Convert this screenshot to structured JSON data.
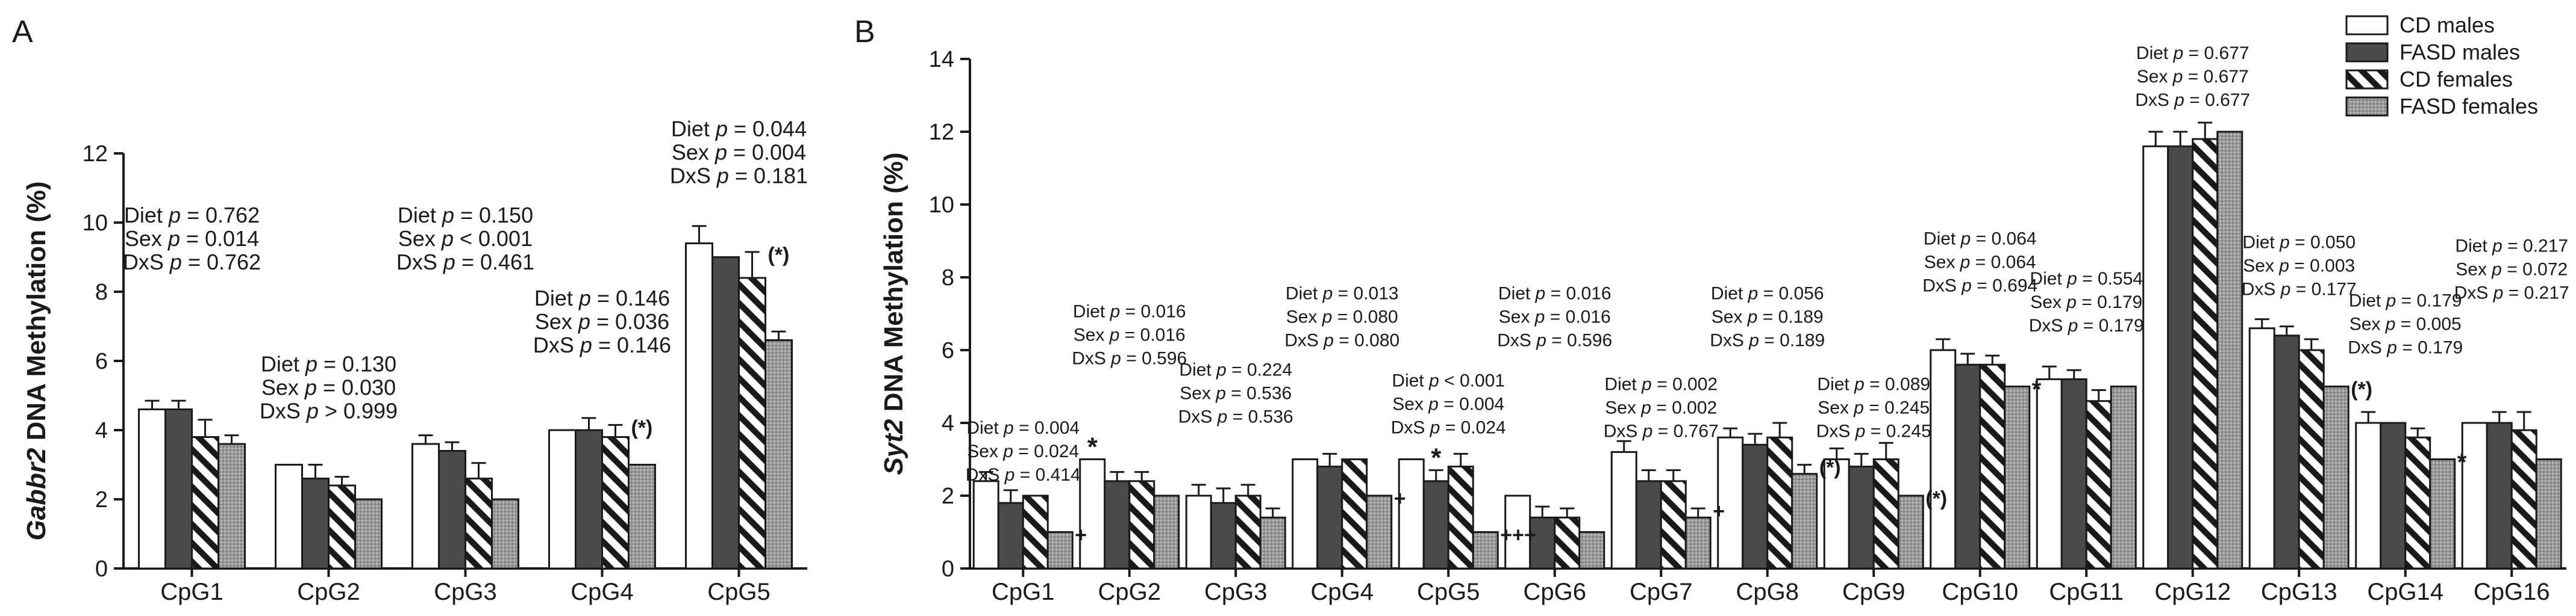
{
  "panel_labels": {
    "a": "A",
    "b": "B"
  },
  "legend": [
    {
      "key": "cd_males",
      "label": "CD males",
      "fill": "#ffffff"
    },
    {
      "key": "fasd_males",
      "label": "FASD males",
      "fill": "#4a4a4a"
    },
    {
      "key": "cd_females",
      "label": "CD females",
      "fill": "hatch"
    },
    {
      "key": "fasd_females",
      "label": "FASD females",
      "fill": "dots"
    }
  ],
  "chart_data": [
    {
      "panel": "A",
      "type": "bar",
      "ylabel_gene": "Gabbr2",
      "ylabel_rest": " DNA Methylation (%)",
      "ylim": [
        0,
        12
      ],
      "yticks": [
        0,
        2,
        4,
        6,
        8,
        10,
        12
      ],
      "categories": [
        "CpG1",
        "CpG2",
        "CpG3",
        "CpG4",
        "CpG5"
      ],
      "series": [
        {
          "name": "CD males",
          "values": [
            4.6,
            3.0,
            3.6,
            4.0,
            9.4
          ],
          "errors": [
            0.25,
            0.0,
            0.25,
            0.0,
            0.5
          ]
        },
        {
          "name": "FASD males",
          "values": [
            4.6,
            2.6,
            3.4,
            4.0,
            9.0
          ],
          "errors": [
            0.25,
            0.4,
            0.25,
            0.35,
            0.0
          ]
        },
        {
          "name": "CD females",
          "values": [
            3.8,
            2.4,
            2.6,
            3.8,
            8.4
          ],
          "errors": [
            0.5,
            0.25,
            0.45,
            0.35,
            0.75
          ]
        },
        {
          "name": "FASD females",
          "values": [
            3.6,
            2.0,
            2.0,
            3.0,
            6.6
          ],
          "errors": [
            0.25,
            0.0,
            0.0,
            0.0,
            0.25
          ]
        }
      ],
      "marks": [
        {
          "cat": 4,
          "series": 2,
          "text": "(*)"
        },
        {
          "cat": 3,
          "series": 2,
          "text": "(*)"
        }
      ],
      "stats": [
        {
          "cat": 0,
          "value": 10.0,
          "lines": [
            {
              "l": "Diet ",
              "p": "p",
              "r": " = 0.762"
            },
            {
              "l": "Sex ",
              "p": "p",
              "r": " = 0.014"
            },
            {
              "l": "DxS ",
              "p": "p",
              "r": " = 0.762"
            }
          ]
        },
        {
          "cat": 1,
          "value": 5.7,
          "lines": [
            {
              "l": "Diet ",
              "p": "p",
              "r": " = 0.130"
            },
            {
              "l": "Sex ",
              "p": "p",
              "r": " = 0.030"
            },
            {
              "l": "DxS ",
              "p": "p",
              "r": " > 0.999"
            }
          ]
        },
        {
          "cat": 2,
          "value": 10.0,
          "lines": [
            {
              "l": "Diet ",
              "p": "p",
              "r": " = 0.150"
            },
            {
              "l": "Sex ",
              "p": "p",
              "r": " < 0.001"
            },
            {
              "l": "DxS ",
              "p": "p",
              "r": " = 0.461"
            }
          ]
        },
        {
          "cat": 3,
          "value": 7.6,
          "lines": [
            {
              "l": "Diet ",
              "p": "p",
              "r": " = 0.146"
            },
            {
              "l": "Sex ",
              "p": "p",
              "r": " = 0.036"
            },
            {
              "l": "DxS ",
              "p": "p",
              "r": " = 0.146"
            }
          ]
        },
        {
          "cat": 4,
          "value": 12.5,
          "lines": [
            {
              "l": "Diet ",
              "p": "p",
              "r": " = 0.044"
            },
            {
              "l": "Sex ",
              "p": "p",
              "r": " = 0.004"
            },
            {
              "l": "DxS ",
              "p": "p",
              "r": " = 0.181"
            }
          ]
        }
      ]
    },
    {
      "panel": "B",
      "type": "bar",
      "ylabel_gene": "Syt2",
      "ylabel_rest": " DNA Methylation (%)",
      "ylim": [
        0,
        14
      ],
      "yticks": [
        0,
        2,
        4,
        6,
        8,
        10,
        12,
        14
      ],
      "categories": [
        "CpG1",
        "CpG2",
        "CpG3",
        "CpG4",
        "CpG5",
        "CpG6",
        "CpG7",
        "CpG8",
        "CpG9",
        "CpG10",
        "CpG11",
        "CpG12",
        "CpG13",
        "CpG14",
        "CpG16"
      ],
      "series": [
        {
          "name": "CD males",
          "values": [
            2.4,
            3.0,
            2.0,
            3.0,
            3.0,
            2.0,
            3.2,
            3.6,
            3.0,
            6.0,
            5.2,
            11.6,
            6.6,
            4.0,
            4.0
          ],
          "errors": [
            0.25,
            0.0,
            0.3,
            0.0,
            0.0,
            0.0,
            0.3,
            0.25,
            0.3,
            0.3,
            0.35,
            0.4,
            0.25,
            0.3,
            0.0
          ]
        },
        {
          "name": "FASD males",
          "values": [
            1.8,
            2.4,
            1.8,
            2.8,
            2.4,
            1.4,
            2.4,
            3.4,
            2.8,
            5.6,
            5.2,
            11.6,
            6.4,
            4.0,
            4.0
          ],
          "errors": [
            0.35,
            0.25,
            0.4,
            0.35,
            0.3,
            0.3,
            0.3,
            0.3,
            0.35,
            0.3,
            0.25,
            0.4,
            0.25,
            0.0,
            0.3
          ]
        },
        {
          "name": "CD females",
          "values": [
            2.0,
            2.4,
            2.0,
            3.0,
            2.8,
            1.4,
            2.4,
            3.6,
            3.0,
            5.6,
            4.6,
            11.8,
            6.0,
            3.6,
            3.8
          ],
          "errors": [
            0.0,
            0.25,
            0.3,
            0.0,
            0.35,
            0.25,
            0.3,
            0.4,
            0.45,
            0.25,
            0.3,
            0.45,
            0.3,
            0.25,
            0.5
          ]
        },
        {
          "name": "FASD females",
          "values": [
            1.0,
            2.0,
            1.4,
            2.0,
            1.0,
            1.0,
            1.4,
            2.6,
            2.0,
            5.0,
            5.0,
            12.0,
            5.0,
            3.0,
            3.0
          ],
          "errors": [
            0.0,
            0.0,
            0.25,
            0.0,
            0.0,
            0.0,
            0.25,
            0.25,
            0.0,
            0.0,
            0.0,
            0.0,
            0.0,
            0.0,
            0.0
          ]
        }
      ],
      "marks": [
        {
          "cat": 0,
          "series": 3,
          "text": "+"
        },
        {
          "cat": 1,
          "series": 0,
          "text": "*"
        },
        {
          "cat": 3,
          "series": 3,
          "text": "+"
        },
        {
          "cat": 4,
          "series": 1,
          "text": "*"
        },
        {
          "cat": 4,
          "series": 3,
          "text": "+++"
        },
        {
          "cat": 6,
          "series": 3,
          "text": "+"
        },
        {
          "cat": 7,
          "series": 3,
          "text": "(*)"
        },
        {
          "cat": 8,
          "series": 3,
          "text": "(*)"
        },
        {
          "cat": 9,
          "series": 3,
          "text": "*"
        },
        {
          "cat": 12,
          "series": 3,
          "text": "(*)"
        },
        {
          "cat": 13,
          "series": 3,
          "text": "*"
        }
      ],
      "stats": [
        {
          "cat": 0,
          "value": 3.7,
          "lines": [
            {
              "l": "Diet ",
              "p": "p",
              "r": " = 0.004"
            },
            {
              "l": "Sex ",
              "p": "p",
              "r": " = 0.024"
            },
            {
              "l": "DxS ",
              "p": "p",
              "r": " = 0.414"
            }
          ]
        },
        {
          "cat": 1,
          "value": 6.9,
          "lines": [
            {
              "l": "Diet ",
              "p": "p",
              "r": " = 0.016"
            },
            {
              "l": "Sex ",
              "p": "p",
              "r": " = 0.016"
            },
            {
              "l": "DxS ",
              "p": "p",
              "r": " = 0.596"
            }
          ]
        },
        {
          "cat": 2,
          "value": 5.3,
          "lines": [
            {
              "l": "Diet ",
              "p": "p",
              "r": " = 0.224"
            },
            {
              "l": "Sex ",
              "p": "p",
              "r": " = 0.536"
            },
            {
              "l": "DxS ",
              "p": "p",
              "r": " = 0.536"
            }
          ]
        },
        {
          "cat": 3,
          "value": 7.4,
          "lines": [
            {
              "l": "Diet ",
              "p": "p",
              "r": " = 0.013"
            },
            {
              "l": "Sex ",
              "p": "p",
              "r": " = 0.080"
            },
            {
              "l": "DxS ",
              "p": "p",
              "r": " = 0.080"
            }
          ]
        },
        {
          "cat": 4,
          "value": 5.0,
          "lines": [
            {
              "l": "Diet ",
              "p": "p",
              "r": " < 0.001"
            },
            {
              "l": "Sex ",
              "p": "p",
              "r": " = 0.004"
            },
            {
              "l": "DxS ",
              "p": "p",
              "r": " = 0.024"
            }
          ]
        },
        {
          "cat": 5,
          "value": 7.4,
          "lines": [
            {
              "l": "Diet ",
              "p": "p",
              "r": " = 0.016"
            },
            {
              "l": "Sex ",
              "p": "p",
              "r": " = 0.016"
            },
            {
              "l": "DxS ",
              "p": "p",
              "r": " = 0.596"
            }
          ]
        },
        {
          "cat": 6,
          "value": 4.9,
          "lines": [
            {
              "l": "Diet ",
              "p": "p",
              "r": " = 0.002"
            },
            {
              "l": "Sex ",
              "p": "p",
              "r": " = 0.002"
            },
            {
              "l": "DxS ",
              "p": "p",
              "r": " = 0.767"
            }
          ]
        },
        {
          "cat": 7,
          "value": 7.4,
          "lines": [
            {
              "l": "Diet ",
              "p": "p",
              "r": " = 0.056"
            },
            {
              "l": "Sex ",
              "p": "p",
              "r": " = 0.189"
            },
            {
              "l": "DxS ",
              "p": "p",
              "r": " = 0.189"
            }
          ]
        },
        {
          "cat": 8,
          "value": 4.9,
          "lines": [
            {
              "l": "Diet ",
              "p": "p",
              "r": " = 0.089"
            },
            {
              "l": "Sex ",
              "p": "p",
              "r": " = 0.245"
            },
            {
              "l": "DxS ",
              "p": "p",
              "r": " = 0.245"
            }
          ]
        },
        {
          "cat": 9,
          "value": 8.9,
          "lines": [
            {
              "l": "Diet ",
              "p": "p",
              "r": " = 0.064"
            },
            {
              "l": "Sex ",
              "p": "p",
              "r": " = 0.064"
            },
            {
              "l": "DxS ",
              "p": "p",
              "r": " = 0.694"
            }
          ]
        },
        {
          "cat": 10,
          "value": 7.8,
          "lines": [
            {
              "l": "Diet ",
              "p": "p",
              "r": " = 0.554"
            },
            {
              "l": "Sex ",
              "p": "p",
              "r": " = 0.179"
            },
            {
              "l": "DxS ",
              "p": "p",
              "r": " = 0.179"
            }
          ]
        },
        {
          "cat": 11,
          "value": 14.0,
          "lines": [
            {
              "l": "Diet ",
              "p": "p",
              "r": " = 0.677"
            },
            {
              "l": "Sex ",
              "p": "p",
              "r": " = 0.677"
            },
            {
              "l": "DxS ",
              "p": "p",
              "r": " = 0.677"
            }
          ]
        },
        {
          "cat": 12,
          "value": 8.8,
          "lines": [
            {
              "l": "Diet ",
              "p": "p",
              "r": " = 0.050"
            },
            {
              "l": "Sex ",
              "p": "p",
              "r": " = 0.003"
            },
            {
              "l": "DxS ",
              "p": "p",
              "r": " = 0.177"
            }
          ]
        },
        {
          "cat": 13,
          "value": 7.2,
          "lines": [
            {
              "l": "Diet ",
              "p": "p",
              "r": " = 0.179"
            },
            {
              "l": "Sex ",
              "p": "p",
              "r": " = 0.005"
            },
            {
              "l": "DxS ",
              "p": "p",
              "r": " = 0.179"
            }
          ]
        },
        {
          "cat": 14,
          "value": 8.7,
          "lines": [
            {
              "l": "Diet ",
              "p": "p",
              "r": " = 0.217"
            },
            {
              "l": "Sex ",
              "p": "p",
              "r": " = 0.072"
            },
            {
              "l": "DxS ",
              "p": "p",
              "r": " = 0.217"
            }
          ]
        }
      ]
    }
  ]
}
